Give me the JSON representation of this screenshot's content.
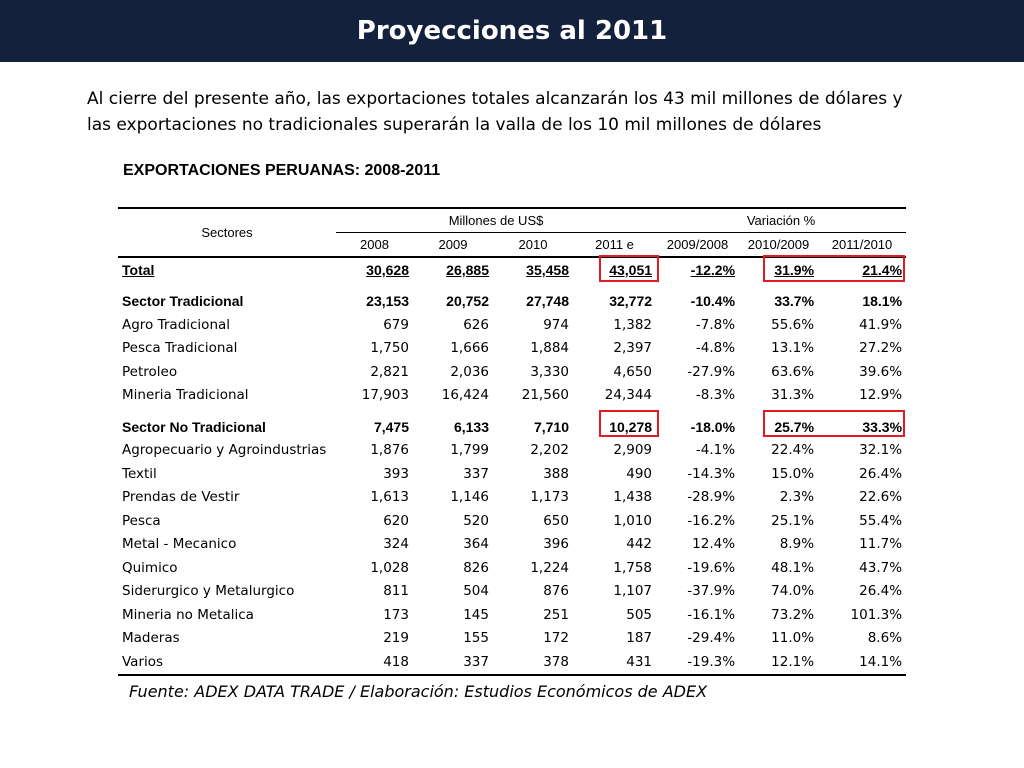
{
  "header": {
    "title": "Proyecciones al 2011"
  },
  "intro": {
    "line1": "Al cierre del presente año, las exportaciones totales alcanzarán los 43 mil millones de dólares y",
    "line2": "las exportaciones no tradicionales superarán la valla de los 10 mil millones de dólares"
  },
  "table": {
    "title": "EXPORTACIONES PERUANAS: 2008-2011",
    "sectors_label": "Sectores",
    "group_millones": "Millones de US$",
    "group_variacion": "Variación %",
    "columns": [
      "2008",
      "2009",
      "2010",
      "2011 e",
      "2009/2008",
      "2010/2009",
      "2011/2010"
    ],
    "total": {
      "name": "Total",
      "values": [
        "30,628",
        "26,885",
        "35,458",
        "43,051",
        "-12.2%",
        "31.9%",
        "21.4%"
      ]
    },
    "tradicional": {
      "name": "Sector Tradicional",
      "values": [
        "23,153",
        "20,752",
        "27,748",
        "32,772",
        "-10.4%",
        "33.7%",
        "18.1%"
      ],
      "rows": [
        {
          "name": "Agro Tradicional",
          "values": [
            "679",
            "626",
            "974",
            "1,382",
            "-7.8%",
            "55.6%",
            "41.9%"
          ]
        },
        {
          "name": "Pesca Tradicional",
          "values": [
            "1,750",
            "1,666",
            "1,884",
            "2,397",
            "-4.8%",
            "13.1%",
            "27.2%"
          ]
        },
        {
          "name": "Petroleo",
          "values": [
            "2,821",
            "2,036",
            "3,330",
            "4,650",
            "-27.9%",
            "63.6%",
            "39.6%"
          ]
        },
        {
          "name": "Mineria Tradicional",
          "values": [
            "17,903",
            "16,424",
            "21,560",
            "24,344",
            "-8.3%",
            "31.3%",
            "12.9%"
          ]
        }
      ]
    },
    "no_tradicional": {
      "name": "Sector No Tradicional",
      "values": [
        "7,475",
        "6,133",
        "7,710",
        "10,278",
        "-18.0%",
        "25.7%",
        "33.3%"
      ],
      "rows": [
        {
          "name": "Agropecuario y Agroindustrias",
          "values": [
            "1,876",
            "1,799",
            "2,202",
            "2,909",
            "-4.1%",
            "22.4%",
            "32.1%"
          ]
        },
        {
          "name": "Textil",
          "values": [
            "393",
            "337",
            "388",
            "490",
            "-14.3%",
            "15.0%",
            "26.4%"
          ]
        },
        {
          "name": "Prendas de Vestir",
          "values": [
            "1,613",
            "1,146",
            "1,173",
            "1,438",
            "-28.9%",
            "2.3%",
            "22.6%"
          ]
        },
        {
          "name": "Pesca",
          "values": [
            "620",
            "520",
            "650",
            "1,010",
            "-16.2%",
            "25.1%",
            "55.4%"
          ]
        },
        {
          "name": "Metal - Mecanico",
          "values": [
            "324",
            "364",
            "396",
            "442",
            "12.4%",
            "8.9%",
            "11.7%"
          ]
        },
        {
          "name": "Quimico",
          "values": [
            "1,028",
            "826",
            "1,224",
            "1,758",
            "-19.6%",
            "48.1%",
            "43.7%"
          ]
        },
        {
          "name": "Siderurgico y Metalurgico",
          "values": [
            "811",
            "504",
            "876",
            "1,107",
            "-37.9%",
            "74.0%",
            "26.4%"
          ]
        },
        {
          "name": "Mineria no Metalica",
          "values": [
            "173",
            "145",
            "251",
            "505",
            "-16.1%",
            "73.2%",
            "101.3%"
          ]
        },
        {
          "name": "Maderas",
          "values": [
            "219",
            "155",
            "172",
            "187",
            "-29.4%",
            "11.0%",
            "8.6%"
          ]
        },
        {
          "name": "Varios",
          "values": [
            "418",
            "337",
            "378",
            "431",
            "-19.3%",
            "12.1%",
            "14.1%"
          ]
        }
      ]
    },
    "highlight_color": "#e31b23"
  },
  "source": "Fuente: ADEX DATA TRADE / Elaboración: Estudios Económicos de ADEX"
}
